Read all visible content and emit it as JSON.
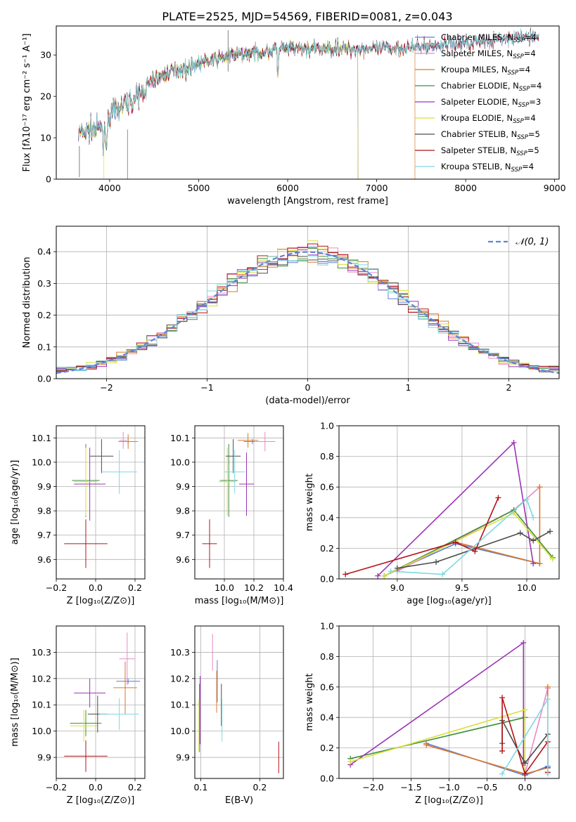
{
  "page_title": "PLATE=2525, MJD=54569, FIBERID=0081, z=0.043",
  "colors": {
    "chabrier_miles": "#5b7fd6",
    "salpeter_miles": "#e98bc4",
    "kroupa_miles": "#d97a2b",
    "chabrier_elodie": "#3f8f3a",
    "salpeter_elodie": "#9b34b7",
    "kroupa_elodie": "#d8e03a",
    "chabrier_stelib": "#4d4d4d",
    "salpeter_stelib": "#b3141a",
    "kroupa_stelib": "#7fd8e0",
    "normal_curve": "#5a86d6",
    "grid": "#b0b0b0"
  },
  "chart_data": [
    {
      "id": "spectrum",
      "type": "line",
      "title": "PLATE=2525, MJD=54569, FIBERID=0081, z=0.043",
      "xlabel": "wavelength [Angstrom, rest frame]",
      "ylabel": "Flux [fλ10⁻¹⁷ erg cm⁻² s⁻¹ A⁻¹]",
      "xlim": [
        3400,
        9050
      ],
      "ylim": [
        0,
        37
      ],
      "xticks": [
        4000,
        5000,
        6000,
        7000,
        8000,
        9000
      ],
      "yticks": [
        0,
        10,
        20,
        30
      ],
      "grid": false,
      "legend_position": "top-right",
      "continuum": {
        "x": [
          3650,
          3800,
          3950,
          4000,
          4100,
          4200,
          4300,
          4400,
          4500,
          4700,
          5000,
          5300,
          5600,
          6000,
          6500,
          7000,
          7500,
          8000,
          8500,
          8820
        ],
        "y": [
          11,
          12,
          12.5,
          15.5,
          17,
          18.5,
          19.5,
          22,
          24,
          26,
          28,
          29.5,
          30.5,
          31.5,
          31.5,
          31.5,
          32,
          33,
          34,
          34.5
        ]
      },
      "series": [
        {
          "name": "Chabrier MILES, Nₛₛₚ=4",
          "legend": [
            "Chabrier MILES, N",
            "SSP",
            "=4"
          ],
          "color_key": "chabrier_miles",
          "range": [
            3650,
            8820
          ]
        },
        {
          "name": "Salpeter MILES, Nₛₛₚ=4",
          "legend": [
            "Salpeter MILES, N",
            "SSP",
            "=4"
          ],
          "color_key": "salpeter_miles",
          "range": [
            3650,
            8820
          ]
        },
        {
          "name": "Kroupa MILES, Nₛₛₚ=4",
          "legend": [
            "Kroupa MILES, N",
            "SSP",
            "=4"
          ],
          "color_key": "kroupa_miles",
          "range": [
            3650,
            7430
          ]
        },
        {
          "name": "Chabrier ELODIE, Nₛₛₚ=4",
          "legend": [
            "Chabrier ELODIE, N",
            "SSP",
            "=4"
          ],
          "color_key": "chabrier_elodie",
          "range": [
            3650,
            6790
          ]
        },
        {
          "name": "Salpeter ELODIE, Nₛₛₚ=3",
          "legend": [
            "Salpeter ELODIE, N",
            "SSP",
            "=3"
          ],
          "color_key": "salpeter_elodie",
          "range": [
            3650,
            6790
          ]
        },
        {
          "name": "Kroupa ELODIE, Nₛₛₚ=4",
          "legend": [
            "Kroupa ELODIE, N",
            "SSP",
            "=4"
          ],
          "color_key": "kroupa_elodie",
          "range": [
            3650,
            6790
          ]
        },
        {
          "name": "Chabrier STELIB, Nₛₛₚ=5",
          "legend": [
            "Chabrier STELIB, N",
            "SSP",
            "=5"
          ],
          "color_key": "chabrier_stelib",
          "range": [
            3650,
            8820
          ]
        },
        {
          "name": "Salpeter STELIB, Nₛₛₚ=5",
          "legend": [
            "Salpeter STELIB, N",
            "SSP",
            "=5"
          ],
          "color_key": "salpeter_stelib",
          "range": [
            3650,
            8820
          ]
        },
        {
          "name": "Kroupa STELIB, Nₛₛₚ=4",
          "legend": [
            "Kroupa STELIB, N",
            "SSP",
            "=4"
          ],
          "color_key": "kroupa_stelib",
          "range": [
            3650,
            8820
          ]
        }
      ]
    },
    {
      "id": "residuals",
      "type": "step-histogram",
      "xlabel": "(data-model)/error",
      "ylabel": "Normed distribution",
      "xlim": [
        -2.5,
        2.5
      ],
      "ylim": [
        0,
        0.48
      ],
      "xticks": [
        -2,
        -1,
        0,
        1,
        2
      ],
      "xtick_labels": [
        "−2",
        "−1",
        "0",
        "1",
        "2"
      ],
      "yticks": [
        0.0,
        0.1,
        0.2,
        0.3,
        0.4
      ],
      "grid": true,
      "legend_position": "top-right",
      "legend_label": "𝒩(0, 1)",
      "bin_width": 0.1,
      "reference_curve": "standard normal N(0,1)",
      "series_color_keys": [
        "chabrier_miles",
        "salpeter_miles",
        "kroupa_miles",
        "chabrier_elodie",
        "salpeter_elodie",
        "kroupa_elodie",
        "chabrier_stelib",
        "salpeter_stelib",
        "kroupa_stelib"
      ]
    },
    {
      "id": "z-age",
      "type": "errorbar",
      "xlabel": "Z [log₁₀(Z/Z⊙)]",
      "ylabel": "age  [log₁₀(age/yr)]",
      "xlim": [
        -0.2,
        0.25
      ],
      "ylim": [
        9.52,
        10.15
      ],
      "xticks": [
        -0.2,
        0.0,
        0.2
      ],
      "yticks": [
        9.6,
        9.7,
        9.8,
        9.9,
        10.0,
        10.1
      ],
      "grid": true,
      "points": [
        {
          "color_key": "chabrier_miles",
          "x": 0.165,
          "xerr": 0.04,
          "y": 10.085,
          "yerr": 0.01
        },
        {
          "color_key": "salpeter_miles",
          "x": 0.14,
          "xerr": 0.02,
          "y": 10.09,
          "yerr": 0.035
        },
        {
          "color_key": "kroupa_miles",
          "x": 0.165,
          "xerr": 0.05,
          "y": 10.085,
          "yerr": 0.03
        },
        {
          "color_key": "chabrier_elodie",
          "x": -0.05,
          "xerr": 0.07,
          "y": 9.925,
          "yerr": 0.15
        },
        {
          "color_key": "salpeter_elodie",
          "x": -0.03,
          "xerr": 0.08,
          "y": 9.91,
          "yerr": 0.15
        },
        {
          "color_key": "kroupa_elodie",
          "x": -0.05,
          "xerr": 0.06,
          "y": 9.92,
          "yerr": 0.14
        },
        {
          "color_key": "chabrier_stelib",
          "x": 0.03,
          "xerr": 0.06,
          "y": 10.025,
          "yerr": 0.07
        },
        {
          "color_key": "salpeter_stelib",
          "x": -0.05,
          "xerr": 0.11,
          "y": 9.665,
          "yerr": 0.1
        },
        {
          "color_key": "kroupa_stelib",
          "x": 0.12,
          "xerr": 0.09,
          "y": 9.96,
          "yerr": 0.09
        }
      ]
    },
    {
      "id": "mass-age",
      "type": "errorbar",
      "xlabel": "mass [log₁₀(M/M⊙)]",
      "ylabel": "",
      "xlim": [
        9.8,
        10.4
      ],
      "ylim": [
        9.52,
        10.15
      ],
      "xticks": [
        10.0,
        10.2,
        10.4
      ],
      "yticks": [
        9.6,
        9.7,
        9.8,
        9.9,
        10.0,
        10.1
      ],
      "grid": true,
      "points": [
        {
          "color_key": "chabrier_miles",
          "x": 10.19,
          "xerr": 0.06,
          "y": 10.085,
          "yerr": 0.01
        },
        {
          "color_key": "salpeter_miles",
          "x": 10.275,
          "xerr": 0.07,
          "y": 10.085,
          "yerr": 0.04
        },
        {
          "color_key": "kroupa_miles",
          "x": 10.16,
          "xerr": 0.07,
          "y": 10.09,
          "yerr": 0.03
        },
        {
          "color_key": "chabrier_elodie",
          "x": 10.03,
          "xerr": 0.06,
          "y": 9.925,
          "yerr": 0.15
        },
        {
          "color_key": "salpeter_elodie",
          "x": 10.15,
          "xerr": 0.05,
          "y": 9.91,
          "yerr": 0.13
        },
        {
          "color_key": "kroupa_elodie",
          "x": 10.02,
          "xerr": 0.06,
          "y": 9.92,
          "yerr": 0.14
        },
        {
          "color_key": "chabrier_stelib",
          "x": 10.06,
          "xerr": 0.05,
          "y": 10.025,
          "yerr": 0.07
        },
        {
          "color_key": "salpeter_stelib",
          "x": 9.9,
          "xerr": 0.05,
          "y": 9.665,
          "yerr": 0.1
        },
        {
          "color_key": "kroupa_stelib",
          "x": 10.07,
          "xerr": 0.07,
          "y": 9.96,
          "yerr": 0.09
        }
      ]
    },
    {
      "id": "age-weights",
      "type": "line",
      "xlabel": "age  [log₁₀(age/yr)]",
      "ylabel": "mass weight",
      "xlim": [
        8.55,
        10.25
      ],
      "ylim": [
        0,
        1
      ],
      "xticks": [
        9.0,
        9.5,
        10.0
      ],
      "yticks": [
        0.0,
        0.2,
        0.4,
        0.6,
        0.8,
        1.0
      ],
      "grid": true,
      "series": [
        {
          "color_key": "chabrier_miles",
          "x": [
            8.9,
            9.45,
            10.1
          ],
          "y": [
            0.02,
            0.23,
            0.1
          ]
        },
        {
          "color_key": "salpeter_miles",
          "x": [
            9.0,
            9.9,
            10.1
          ],
          "y": [
            0.05,
            0.45,
            0.6
          ]
        },
        {
          "color_key": "kroupa_miles",
          "x": [
            9.45,
            10.1,
            10.1
          ],
          "y": [
            0.24,
            0.1,
            0.6
          ]
        },
        {
          "color_key": "chabrier_elodie",
          "x": [
            8.9,
            9.9,
            10.2
          ],
          "y": [
            0.02,
            0.45,
            0.14
          ]
        },
        {
          "color_key": "salpeter_elodie",
          "x": [
            8.85,
            9.9,
            10.05
          ],
          "y": [
            0.02,
            0.89,
            0.1
          ]
        },
        {
          "color_key": "kroupa_elodie",
          "x": [
            8.9,
            9.9,
            10.2
          ],
          "y": [
            0.02,
            0.43,
            0.13
          ]
        },
        {
          "color_key": "chabrier_stelib",
          "x": [
            9.0,
            9.3,
            9.95,
            10.05,
            10.18
          ],
          "y": [
            0.07,
            0.11,
            0.3,
            0.25,
            0.31
          ]
        },
        {
          "color_key": "salpeter_stelib",
          "x": [
            8.6,
            9.45,
            9.6,
            9.78
          ],
          "y": [
            0.03,
            0.24,
            0.18,
            0.53
          ]
        },
        {
          "color_key": "kroupa_stelib",
          "x": [
            8.95,
            9.35,
            10.0,
            10.05
          ],
          "y": [
            0.05,
            0.03,
            0.52,
            0.4
          ]
        }
      ]
    },
    {
      "id": "z-mass",
      "type": "errorbar",
      "xlabel": "Z [log₁₀(Z/Z⊙)]",
      "ylabel": "mass [log₁₀(M/M⊙)]",
      "xlim": [
        -0.2,
        0.25
      ],
      "ylim": [
        9.82,
        10.4
      ],
      "xticks": [
        -0.2,
        0.0,
        0.2
      ],
      "yticks": [
        9.9,
        10.0,
        10.1,
        10.2,
        10.3
      ],
      "grid": true,
      "points": [
        {
          "color_key": "chabrier_miles",
          "x": 0.165,
          "xerr": 0.06,
          "y": 10.19,
          "yerr": 0.01
        },
        {
          "color_key": "salpeter_miles",
          "x": 0.16,
          "xerr": 0.04,
          "y": 10.275,
          "yerr": 0.1
        },
        {
          "color_key": "kroupa_miles",
          "x": 0.15,
          "xerr": 0.06,
          "y": 10.165,
          "yerr": 0.1
        },
        {
          "color_key": "chabrier_elodie",
          "x": -0.05,
          "xerr": 0.08,
          "y": 10.03,
          "yerr": 0.05
        },
        {
          "color_key": "salpeter_elodie",
          "x": -0.03,
          "xerr": 0.08,
          "y": 10.145,
          "yerr": 0.055
        },
        {
          "color_key": "kroupa_elodie",
          "x": -0.06,
          "xerr": 0.07,
          "y": 10.02,
          "yerr": 0.06
        },
        {
          "color_key": "chabrier_stelib",
          "x": 0.01,
          "xerr": 0.05,
          "y": 10.065,
          "yerr": 0.07
        },
        {
          "color_key": "salpeter_stelib",
          "x": -0.05,
          "xerr": 0.11,
          "y": 9.905,
          "yerr": 0.06
        },
        {
          "color_key": "kroupa_stelib",
          "x": 0.12,
          "xerr": 0.1,
          "y": 10.065,
          "yerr": 0.06
        }
      ]
    },
    {
      "id": "ebv-mass",
      "type": "errorbar",
      "xlabel": "E(B-V)",
      "ylabel": "",
      "xlim": [
        0.09,
        0.24
      ],
      "ylim": [
        9.82,
        10.4
      ],
      "xticks": [
        0.1,
        0.2
      ],
      "yticks": [
        9.9,
        10.0,
        10.1,
        10.2,
        10.3
      ],
      "grid": true,
      "points": [
        {
          "color_key": "chabrier_miles",
          "x": 0.128,
          "xerr": 0.0,
          "y": 10.19,
          "yerr": 0.08
        },
        {
          "color_key": "salpeter_miles",
          "x": 0.12,
          "xerr": 0.0,
          "y": 10.3,
          "yerr": 0.07
        },
        {
          "color_key": "kroupa_miles",
          "x": 0.127,
          "xerr": 0.0,
          "y": 10.15,
          "yerr": 0.08
        },
        {
          "color_key": "chabrier_elodie",
          "x": 0.098,
          "xerr": 0.0,
          "y": 10.05,
          "yerr": 0.13
        },
        {
          "color_key": "salpeter_elodie",
          "x": 0.099,
          "xerr": 0.0,
          "y": 10.08,
          "yerr": 0.13
        },
        {
          "color_key": "kroupa_elodie",
          "x": 0.097,
          "xerr": 0.0,
          "y": 10.02,
          "yerr": 0.1
        },
        {
          "color_key": "chabrier_stelib",
          "x": 0.135,
          "xerr": 0.0,
          "y": 10.1,
          "yerr": 0.08
        },
        {
          "color_key": "salpeter_stelib",
          "x": 0.232,
          "xerr": 0.0,
          "y": 9.9,
          "yerr": 0.06
        },
        {
          "color_key": "kroupa_stelib",
          "x": 0.136,
          "xerr": 0.0,
          "y": 10.04,
          "yerr": 0.08
        }
      ]
    },
    {
      "id": "z-weights",
      "type": "line",
      "xlabel": "Z [log₁₀(Z/Z⊙)]",
      "ylabel": "mass weight",
      "xlim": [
        -2.45,
        0.45
      ],
      "ylim": [
        0,
        1
      ],
      "xticks": [
        -2.0,
        -1.5,
        -1.0,
        -0.5,
        0.0
      ],
      "xtick_labels": [
        "−2.0",
        "−1.5",
        "−1.0",
        "−0.5",
        "0.0"
      ],
      "yticks": [
        0.0,
        0.2,
        0.4,
        0.6,
        0.8,
        1.0
      ],
      "grid": true,
      "series": [
        {
          "color_key": "chabrier_miles",
          "x": [
            -1.3,
            0.0,
            0.3
          ],
          "y": [
            0.23,
            0.02,
            0.08
          ]
        },
        {
          "color_key": "salpeter_miles",
          "x": [
            -1.3,
            0.0,
            0.3
          ],
          "y": [
            0.22,
            0.03,
            0.59
          ]
        },
        {
          "color_key": "kroupa_miles",
          "x": [
            -1.3,
            0.0,
            0.3,
            0.3
          ],
          "y": [
            0.22,
            0.03,
            0.07,
            0.6
          ]
        },
        {
          "color_key": "chabrier_elodie",
          "x": [
            -2.3,
            0.0
          ],
          "y": [
            0.13,
            0.4
          ]
        },
        {
          "color_key": "salpeter_elodie",
          "x": [
            -2.3,
            -0.02,
            -0.02
          ],
          "y": [
            0.09,
            0.89,
            0.1
          ]
        },
        {
          "color_key": "kroupa_elodie",
          "x": [
            -2.3,
            0.0,
            0.0
          ],
          "y": [
            0.11,
            0.45,
            0.03
          ]
        },
        {
          "color_key": "chabrier_stelib",
          "x": [
            -0.3,
            -0.3,
            0.0,
            0.3,
            0.3
          ],
          "y": [
            0.23,
            0.38,
            0.1,
            0.29,
            0.07
          ]
        },
        {
          "color_key": "salpeter_stelib",
          "x": [
            -0.3,
            -0.3,
            0.0,
            0.3,
            0.3
          ],
          "y": [
            0.18,
            0.53,
            0.03,
            0.24,
            0.04
          ]
        },
        {
          "color_key": "kroupa_stelib",
          "x": [
            -0.3,
            0.3,
            0.3
          ],
          "y": [
            0.03,
            0.52,
            0.03
          ]
        }
      ]
    }
  ]
}
